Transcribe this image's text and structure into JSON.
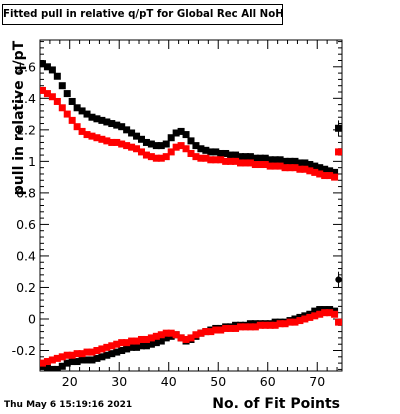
{
  "chart_data": {
    "type": "scatter",
    "title": "Fitted pull in relative q/pT for Global Rec All NoHits",
    "xlabel": "No. of Fit Points",
    "ylabel": "pull in relative q/pT",
    "xlim": [
      14,
      75
    ],
    "ylim": [
      -0.33,
      1.77
    ],
    "xticks": [
      20,
      30,
      40,
      50,
      60,
      70
    ],
    "yticks": [
      -0.2,
      0,
      0.2,
      0.4,
      0.6,
      0.8,
      1,
      1.2,
      1.4,
      1.6
    ],
    "grid": false,
    "legend": "none",
    "series": [
      {
        "color": "#000000",
        "x": [
          14.5,
          15.5,
          16.5,
          17.5,
          18.5,
          19.5,
          20.5,
          21.5,
          22.5,
          23.5,
          24.5,
          25.5,
          26.5,
          27.5,
          28.5,
          29.5,
          30.5,
          31.5,
          32.5,
          33.5,
          34.5,
          35.5,
          36.5,
          37.5,
          38.5,
          39.5,
          40.5,
          41.5,
          42.5,
          43.5,
          44.5,
          45.5,
          46.5,
          47.5,
          48.5,
          49.5,
          50.5,
          51.5,
          52.5,
          53.5,
          54.5,
          55.5,
          56.5,
          57.5,
          58.5,
          59.5,
          60.5,
          61.5,
          62.5,
          63.5,
          64.5,
          65.5,
          66.5,
          67.5,
          68.5,
          69.5,
          70.5,
          71.5,
          72.5,
          73.5
        ],
        "values": [
          1.62,
          1.6,
          1.58,
          1.54,
          1.48,
          1.43,
          1.38,
          1.34,
          1.32,
          1.3,
          1.28,
          1.27,
          1.26,
          1.25,
          1.24,
          1.23,
          1.22,
          1.2,
          1.18,
          1.16,
          1.14,
          1.12,
          1.11,
          1.1,
          1.1,
          1.11,
          1.15,
          1.18,
          1.19,
          1.17,
          1.13,
          1.1,
          1.08,
          1.07,
          1.06,
          1.06,
          1.05,
          1.05,
          1.04,
          1.04,
          1.03,
          1.03,
          1.03,
          1.02,
          1.02,
          1.02,
          1.01,
          1.01,
          1.01,
          1.0,
          1.0,
          1.0,
          0.99,
          0.99,
          0.98,
          0.97,
          0.96,
          0.95,
          0.94,
          0.93
        ]
      },
      {
        "color": "#ff0000",
        "x": [
          14.5,
          15.5,
          16.5,
          17.5,
          18.5,
          19.5,
          20.5,
          21.5,
          22.5,
          23.5,
          24.5,
          25.5,
          26.5,
          27.5,
          28.5,
          29.5,
          30.5,
          31.5,
          32.5,
          33.5,
          34.5,
          35.5,
          36.5,
          37.5,
          38.5,
          39.5,
          40.5,
          41.5,
          42.5,
          43.5,
          44.5,
          45.5,
          46.5,
          47.5,
          48.5,
          49.5,
          50.5,
          51.5,
          52.5,
          53.5,
          54.5,
          55.5,
          56.5,
          57.5,
          58.5,
          59.5,
          60.5,
          61.5,
          62.5,
          63.5,
          64.5,
          65.5,
          66.5,
          67.5,
          68.5,
          69.5,
          70.5,
          71.5,
          72.5,
          73.5
        ],
        "values": [
          1.45,
          1.43,
          1.41,
          1.38,
          1.34,
          1.3,
          1.26,
          1.22,
          1.19,
          1.17,
          1.16,
          1.15,
          1.14,
          1.13,
          1.12,
          1.12,
          1.11,
          1.1,
          1.09,
          1.08,
          1.06,
          1.04,
          1.03,
          1.02,
          1.02,
          1.03,
          1.06,
          1.09,
          1.1,
          1.08,
          1.05,
          1.03,
          1.02,
          1.02,
          1.01,
          1.01,
          1.01,
          1.0,
          1.0,
          1.0,
          0.99,
          0.99,
          0.99,
          0.98,
          0.98,
          0.98,
          0.97,
          0.97,
          0.97,
          0.96,
          0.96,
          0.96,
          0.95,
          0.95,
          0.94,
          0.93,
          0.92,
          0.91,
          0.91,
          0.9
        ]
      },
      {
        "color": "#000000",
        "x": [
          14.5,
          15.5,
          16.5,
          17.5,
          18.5,
          19.5,
          20.5,
          21.5,
          22.5,
          23.5,
          24.5,
          25.5,
          26.5,
          27.5,
          28.5,
          29.5,
          30.5,
          31.5,
          32.5,
          33.5,
          34.5,
          35.5,
          36.5,
          37.5,
          38.5,
          39.5,
          40.5,
          41.5,
          42.5,
          43.5,
          44.5,
          45.5,
          46.5,
          47.5,
          48.5,
          49.5,
          50.5,
          51.5,
          52.5,
          53.5,
          54.5,
          55.5,
          56.5,
          57.5,
          58.5,
          59.5,
          60.5,
          61.5,
          62.5,
          63.5,
          64.5,
          65.5,
          66.5,
          67.5,
          68.5,
          69.5,
          70.5,
          71.5,
          72.5,
          73.5
        ],
        "values": [
          -0.3,
          -0.31,
          -0.32,
          -0.32,
          -0.3,
          -0.28,
          -0.27,
          -0.27,
          -0.26,
          -0.26,
          -0.26,
          -0.25,
          -0.24,
          -0.23,
          -0.22,
          -0.21,
          -0.2,
          -0.19,
          -0.18,
          -0.18,
          -0.17,
          -0.17,
          -0.16,
          -0.15,
          -0.14,
          -0.12,
          -0.11,
          -0.1,
          -0.12,
          -0.14,
          -0.13,
          -0.11,
          -0.09,
          -0.08,
          -0.07,
          -0.06,
          -0.06,
          -0.05,
          -0.05,
          -0.04,
          -0.04,
          -0.04,
          -0.03,
          -0.03,
          -0.03,
          -0.03,
          -0.03,
          -0.02,
          -0.02,
          -0.02,
          -0.01,
          0.0,
          0.01,
          0.02,
          0.03,
          0.05,
          0.06,
          0.06,
          0.06,
          0.05
        ]
      },
      {
        "color": "#ff0000",
        "x": [
          14.5,
          15.5,
          16.5,
          17.5,
          18.5,
          19.5,
          20.5,
          21.5,
          22.5,
          23.5,
          24.5,
          25.5,
          26.5,
          27.5,
          28.5,
          29.5,
          30.5,
          31.5,
          32.5,
          33.5,
          34.5,
          35.5,
          36.5,
          37.5,
          38.5,
          39.5,
          40.5,
          41.5,
          42.5,
          43.5,
          44.5,
          45.5,
          46.5,
          47.5,
          48.5,
          49.5,
          50.5,
          51.5,
          52.5,
          53.5,
          54.5,
          55.5,
          56.5,
          57.5,
          58.5,
          59.5,
          60.5,
          61.5,
          62.5,
          63.5,
          64.5,
          65.5,
          66.5,
          67.5,
          68.5,
          69.5,
          70.5,
          71.5,
          72.5,
          73.5
        ],
        "values": [
          -0.28,
          -0.27,
          -0.26,
          -0.25,
          -0.24,
          -0.23,
          -0.23,
          -0.22,
          -0.22,
          -0.21,
          -0.21,
          -0.2,
          -0.19,
          -0.18,
          -0.17,
          -0.16,
          -0.15,
          -0.15,
          -0.14,
          -0.14,
          -0.13,
          -0.13,
          -0.12,
          -0.11,
          -0.1,
          -0.09,
          -0.09,
          -0.1,
          -0.12,
          -0.13,
          -0.12,
          -0.1,
          -0.09,
          -0.08,
          -0.08,
          -0.07,
          -0.07,
          -0.06,
          -0.06,
          -0.06,
          -0.05,
          -0.05,
          -0.05,
          -0.05,
          -0.04,
          -0.04,
          -0.04,
          -0.04,
          -0.03,
          -0.03,
          -0.02,
          -0.02,
          -0.01,
          0.0,
          0.01,
          0.02,
          0.03,
          0.04,
          0.04,
          0.03
        ]
      }
    ],
    "outliers": [
      {
        "x": 74.3,
        "y": 1.21,
        "color": "#000000",
        "err": 0.05
      },
      {
        "x": 74.3,
        "y": 1.06,
        "color": "#ff0000",
        "err": 0.0
      },
      {
        "x": 74.3,
        "y": 0.25,
        "color": "#000000",
        "err": 0.05
      },
      {
        "x": 74.3,
        "y": -0.02,
        "color": "#ff0000",
        "err": 0.0
      }
    ]
  },
  "footer": {
    "timestamp": "Thu May  6 15:19:16 2021"
  }
}
